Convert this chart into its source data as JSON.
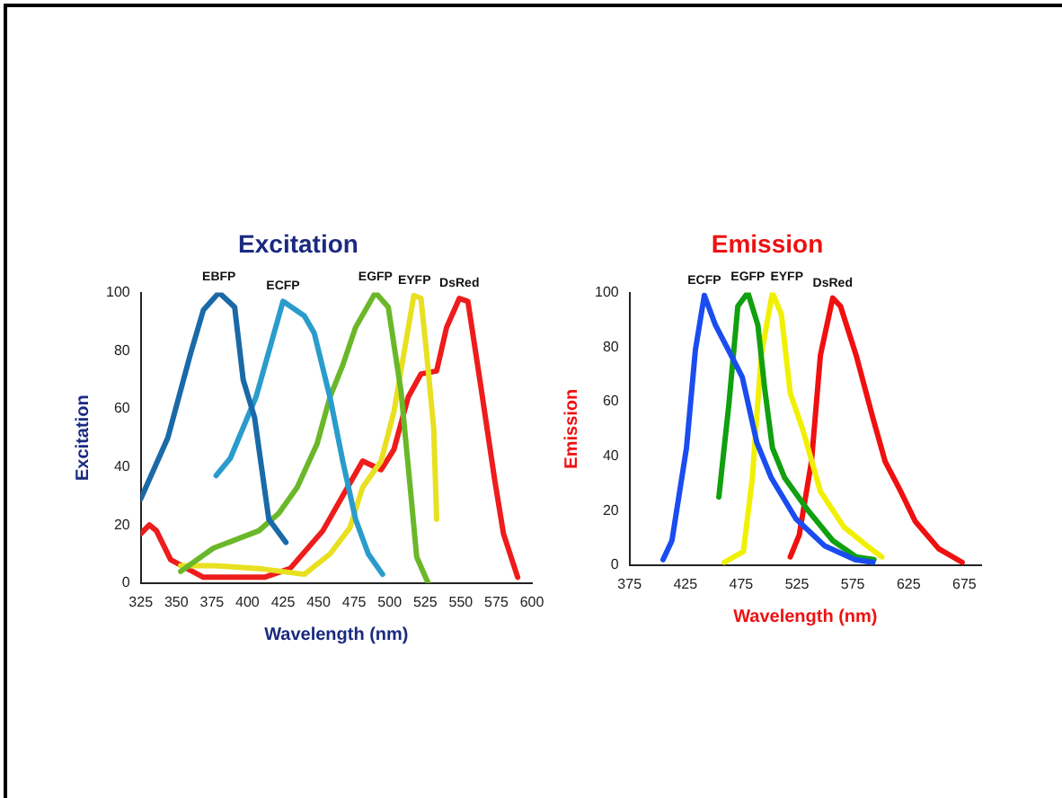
{
  "chart_data": [
    {
      "type": "line",
      "title": "Excitation",
      "xlabel": "Wavelength (nm)",
      "ylabel": "Excitation",
      "xlim": [
        325,
        600
      ],
      "xticks": [
        325,
        350,
        375,
        400,
        425,
        450,
        475,
        500,
        525,
        550,
        575,
        600
      ],
      "ylim": [
        0,
        100
      ],
      "yticks": [
        0,
        20,
        40,
        60,
        80,
        100
      ],
      "marker": "none",
      "series": [
        {
          "name": "EBFP",
          "color": "#1a6aa8",
          "x": [
            325,
            344,
            360,
            369,
            380,
            391,
            397,
            405,
            415,
            427
          ],
          "values": [
            29,
            50,
            79,
            94,
            100,
            95,
            70,
            57,
            22,
            14
          ]
        },
        {
          "name": "ECFP",
          "color": "#2a9ccc",
          "x": [
            378,
            388,
            406,
            425,
            431,
            440,
            447,
            458,
            467,
            476,
            485,
            495
          ],
          "values": [
            37,
            43,
            64,
            97,
            95,
            92,
            86,
            64,
            42,
            22,
            10,
            3
          ]
        },
        {
          "name": "EGFP",
          "color": "#6ab82a",
          "x": [
            353,
            376,
            408,
            422,
            435,
            449,
            458,
            467,
            476,
            490,
            499,
            508,
            515,
            519,
            527
          ],
          "values": [
            4,
            12,
            18,
            24,
            33,
            48,
            64,
            75,
            88,
            100,
            95,
            66,
            30,
            9,
            0
          ]
        },
        {
          "name": "EYFP",
          "color": "#e8e020",
          "x": [
            353,
            376,
            408,
            440,
            458,
            472,
            481,
            494,
            503,
            510,
            517,
            522,
            526,
            531,
            533
          ],
          "values": [
            6,
            6,
            5,
            3,
            10,
            19,
            33,
            42,
            59,
            79,
            99,
            98,
            79,
            53,
            22
          ]
        },
        {
          "name": "DsRed",
          "color": "#ee1c1c",
          "x": [
            325,
            331,
            336,
            346,
            369,
            412,
            430,
            453,
            467,
            481,
            494,
            503,
            513,
            522,
            533,
            540,
            549,
            555,
            564,
            574,
            580,
            590
          ],
          "values": [
            17,
            20,
            18,
            8,
            2,
            2,
            5,
            18,
            30,
            42,
            39,
            46,
            64,
            72,
            73,
            88,
            98,
            97,
            68,
            35,
            17,
            2
          ]
        }
      ]
    },
    {
      "type": "line",
      "title": "Emission",
      "xlabel": "Wavelength (nm)",
      "ylabel": "Emission",
      "xlim": [
        375,
        690
      ],
      "xticks": [
        375,
        425,
        475,
        525,
        575,
        625,
        675
      ],
      "ylim": [
        0,
        100
      ],
      "yticks": [
        0,
        20,
        40,
        60,
        80,
        100
      ],
      "marker": "none",
      "series": [
        {
          "name": "ECFP",
          "color": "#1a4cf0",
          "x": [
            405,
            413,
            426,
            434,
            442,
            452,
            466,
            476,
            489,
            502,
            524,
            550,
            577,
            593
          ],
          "values": [
            2,
            9,
            43,
            79,
            99,
            88,
            77,
            69,
            45,
            32,
            17,
            7,
            2,
            1
          ]
        },
        {
          "name": "EGFP",
          "color": "#10a010",
          "x": [
            455,
            464,
            472,
            481,
            490,
            496,
            503,
            514,
            535,
            557,
            578,
            594
          ],
          "values": [
            25,
            59,
            95,
            100,
            88,
            65,
            43,
            32,
            20,
            9,
            3,
            2
          ]
        },
        {
          "name": "EYFP",
          "color": "#f0f000",
          "x": [
            460,
            477,
            485,
            493,
            503,
            511,
            519,
            530,
            546,
            567,
            588,
            601
          ],
          "values": [
            1,
            5,
            32,
            77,
            100,
            92,
            63,
            50,
            27,
            14,
            7,
            3
          ]
        },
        {
          "name": "DsRed",
          "color": "#f01010",
          "x": [
            519,
            527,
            538,
            546,
            557,
            564,
            578,
            593,
            604,
            618,
            631,
            652,
            673
          ],
          "values": [
            3,
            11,
            38,
            77,
            98,
            95,
            77,
            54,
            38,
            27,
            16,
            6,
            1
          ]
        }
      ]
    }
  ]
}
